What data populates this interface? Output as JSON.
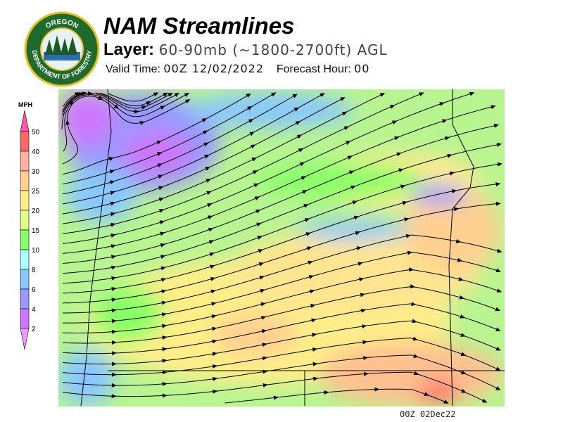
{
  "header": {
    "title": "NAM Streamlines",
    "layer_label": "Layer:",
    "layer_value": "60-90mb (~1800-2700ft) AGL",
    "valid_time_label": "Valid Time:",
    "valid_time_value": "00Z 12/02/2022",
    "forecast_hour_label": "Forecast Hour:",
    "forecast_hour_value": "00"
  },
  "logo": {
    "top_text": "OREGON",
    "bottom_text": "DEPARTMENT OF FORESTRY"
  },
  "legend": {
    "unit": "MPH",
    "ticks": [
      "50",
      "40",
      "30",
      "25",
      "20",
      "15",
      "10",
      "8",
      "6",
      "4",
      "2"
    ],
    "colors": [
      "#ff6666",
      "#ffb0a0",
      "#ffd090",
      "#ffee88",
      "#ddff88",
      "#88ff66",
      "#aaffff",
      "#88c8ff",
      "#9999ff",
      "#cc77ff"
    ],
    "over_color": "#ff55aa",
    "under_color": "#ee99ff"
  },
  "footer": {
    "timestamp": "00Z 02Dec22"
  }
}
